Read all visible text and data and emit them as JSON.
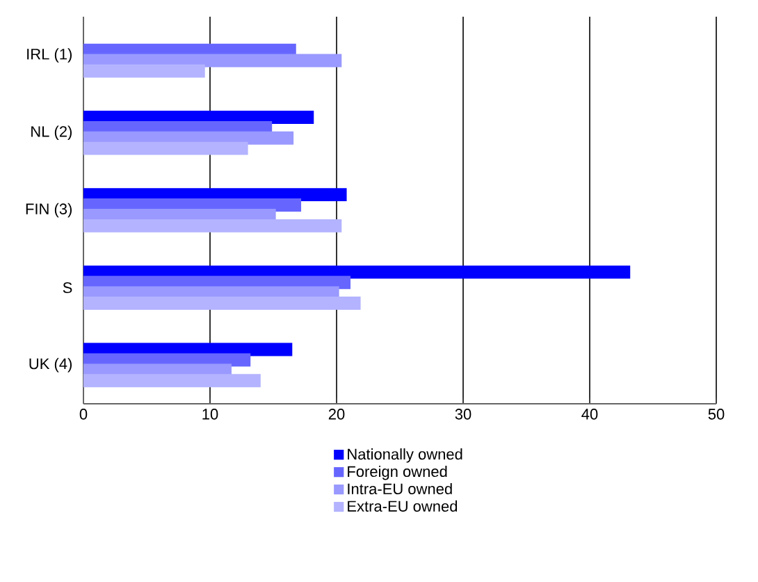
{
  "chart_data": {
    "type": "bar",
    "orientation": "horizontal",
    "categories": [
      "IRL (1)",
      "NL (2)",
      "FIN (3)",
      "S",
      "UK (4)"
    ],
    "series": [
      {
        "name": "Nationally owned",
        "color": "#0000ff",
        "values": [
          null,
          18.2,
          20.8,
          43.2,
          16.5
        ]
      },
      {
        "name": "Foreign owned",
        "color": "#6666ff",
        "values": [
          16.8,
          14.9,
          17.2,
          21.1,
          13.2
        ]
      },
      {
        "name": "Intra-EU owned",
        "color": "#9999ff",
        "values": [
          20.4,
          16.6,
          15.2,
          20.2,
          11.7
        ]
      },
      {
        "name": "Extra-EU owned",
        "color": "#b3b3ff",
        "values": [
          9.6,
          13.0,
          20.4,
          21.9,
          14.0
        ]
      }
    ],
    "xlim": [
      0,
      50
    ],
    "xticks": [
      0,
      10,
      20,
      30,
      40,
      50
    ],
    "grid": "x",
    "legend": "bottom"
  }
}
